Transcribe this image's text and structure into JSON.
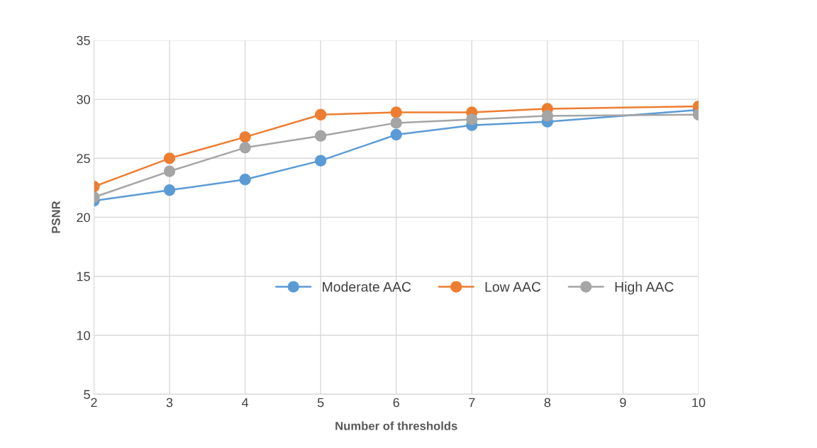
{
  "chart_data": {
    "type": "line",
    "xlabel": "Number of thresholds",
    "ylabel": "PSNR",
    "xlim": [
      2,
      10
    ],
    "xticks": [
      2,
      3,
      4,
      5,
      6,
      7,
      8,
      9,
      10
    ],
    "ylim": [
      5,
      35
    ],
    "yticks": [
      5,
      10,
      15,
      20,
      25,
      30,
      35
    ],
    "grid": true,
    "legend": "center right",
    "marker": "circle",
    "line_style": "solid",
    "series": [
      {
        "name": "Moderate AAC",
        "color": "#5b9bd5",
        "x": [
          2,
          3,
          4,
          5,
          6,
          7,
          8,
          10
        ],
        "values": [
          21.4,
          22.3,
          23.2,
          24.8,
          27.0,
          27.8,
          28.1,
          29.1
        ]
      },
      {
        "name": "Low AAC",
        "color": "#ed7d31",
        "x": [
          2,
          3,
          4,
          5,
          6,
          7,
          8,
          10
        ],
        "values": [
          22.6,
          25.0,
          26.8,
          28.7,
          28.9,
          28.9,
          29.2,
          29.4
        ]
      },
      {
        "name": "High AAC",
        "color": "#a5a5a5",
        "x": [
          2,
          3,
          4,
          5,
          6,
          7,
          8,
          10
        ],
        "values": [
          21.7,
          23.9,
          25.9,
          26.9,
          28.0,
          28.3,
          28.6,
          28.7
        ]
      }
    ]
  }
}
